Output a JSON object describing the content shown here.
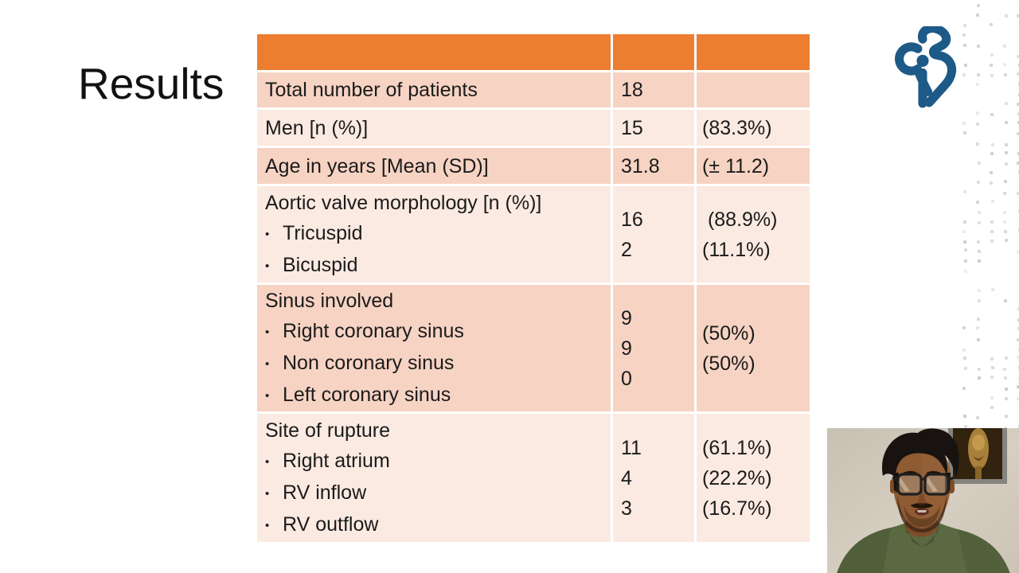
{
  "slide": {
    "title": "Results",
    "background_color": "#ffffff",
    "text_color": "#1b1b1b"
  },
  "table": {
    "header_labels": [
      "",
      "",
      ""
    ],
    "colors": {
      "header_bg": "#ED7D31",
      "band_dark": "#F6D3C3",
      "band_light": "#FBEAE1",
      "divider": "#FFFFFF"
    },
    "rows": [
      {
        "shade": "dark",
        "lines": [
          {
            "bullet": false,
            "text": "Total number of patients",
            "n": "18",
            "pct": ""
          }
        ]
      },
      {
        "shade": "light",
        "lines": [
          {
            "bullet": false,
            "text": "Men [n (%)]",
            "n": "15",
            "pct": "(83.3%)"
          }
        ]
      },
      {
        "shade": "dark",
        "lines": [
          {
            "bullet": false,
            "text": "Age in years [Mean (SD)]",
            "n": "31.8",
            "pct": "(± 11.2)"
          }
        ]
      },
      {
        "shade": "light",
        "lines": [
          {
            "bullet": false,
            "text": "Aortic valve morphology [n (%)]",
            "n": "",
            "pct": ""
          },
          {
            "bullet": true,
            "text": "Tricuspid",
            "n": "16",
            "pct": " (88.9%)"
          },
          {
            "bullet": true,
            "text": "Bicuspid",
            "n": "2",
            "pct": "(11.1%)"
          }
        ]
      },
      {
        "shade": "dark",
        "lines": [
          {
            "bullet": false,
            "text": "Sinus involved",
            "n": "",
            "pct": ""
          },
          {
            "bullet": true,
            "text": "Right coronary sinus",
            "n": "9",
            "pct": "(50%)"
          },
          {
            "bullet": true,
            "text": "Non coronary sinus",
            "n": "9",
            "pct": "(50%)"
          },
          {
            "bullet": true,
            "text": "Left coronary sinus",
            "n": "0",
            "pct": ""
          }
        ]
      },
      {
        "shade": "light",
        "lines": [
          {
            "bullet": false,
            "text": "Site of rupture",
            "n": "",
            "pct": ""
          },
          {
            "bullet": true,
            "text": "Right atrium",
            "n": "11",
            "pct": "(61.1%)"
          },
          {
            "bullet": true,
            "text": "RV inflow",
            "n": "4",
            "pct": "(22.2%)"
          },
          {
            "bullet": true,
            "text": "RV outflow",
            "n": "3",
            "pct": "(16.7%)"
          }
        ]
      }
    ],
    "bullet_glyph": "•"
  },
  "logo": {
    "icon": "csi-heart-logo",
    "color": "#1D5A88"
  },
  "decor": {
    "dots_color": "#c9c9c9"
  },
  "webcam": {
    "content": "presenter-video",
    "colors": {
      "wall": "#D2CABD",
      "shirt": "#5A6942",
      "skin": "#8E5B33",
      "hair": "#181310",
      "picture_frame": "#85847E"
    }
  }
}
